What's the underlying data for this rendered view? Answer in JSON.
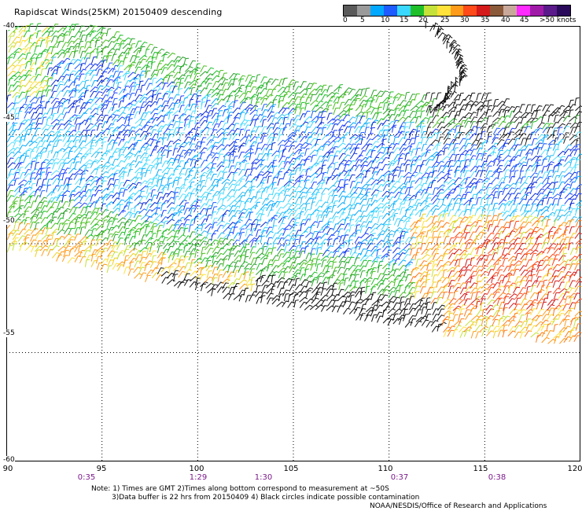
{
  "title": "Rapidscat Winds(25KM) 20150409 descending",
  "colorbar": {
    "labels": [
      "0",
      "5",
      "10",
      "15",
      "20",
      "25",
      "30",
      "35",
      "40",
      "45",
      ">50 knots"
    ],
    "colors": [
      "#5a5a5a",
      "#9a9a9a",
      "#00a8ff",
      "#1e5cff",
      "#3ad8ff",
      "#1fbf2a",
      "#c4e23a",
      "#ffe23a",
      "#ff9b1a",
      "#ff4a1a",
      "#d41a1a",
      "#8a5a3a",
      "#c8a89a",
      "#ff2aff",
      "#a01aa8",
      "#5a1a8a",
      "#2a0a5a"
    ]
  },
  "map": {
    "lat_labels": [
      "-40",
      "-45",
      "-50",
      "-55",
      "-60"
    ],
    "lon_labels": [
      "90",
      "95",
      "100",
      "105",
      "110",
      "115",
      "120"
    ],
    "time_labels": [
      {
        "lon": 95,
        "text": "0:35"
      },
      {
        "lon": 100,
        "text": "1:29"
      },
      {
        "lon": 103.5,
        "text": "1:30"
      },
      {
        "lon": 110,
        "text": "0:37"
      },
      {
        "lon": 116,
        "text": "0:38"
      }
    ]
  },
  "notes": {
    "line1": "Note: 1) Times are GMT 2)Times along bottom correspond to measurement at ~50S",
    "line2": "3)Data buffer is 22 hrs from 20150409 4) Black circles indicate possible contamination",
    "line3": "NOAA/NESDIS/Office of Research and Applications"
  }
}
